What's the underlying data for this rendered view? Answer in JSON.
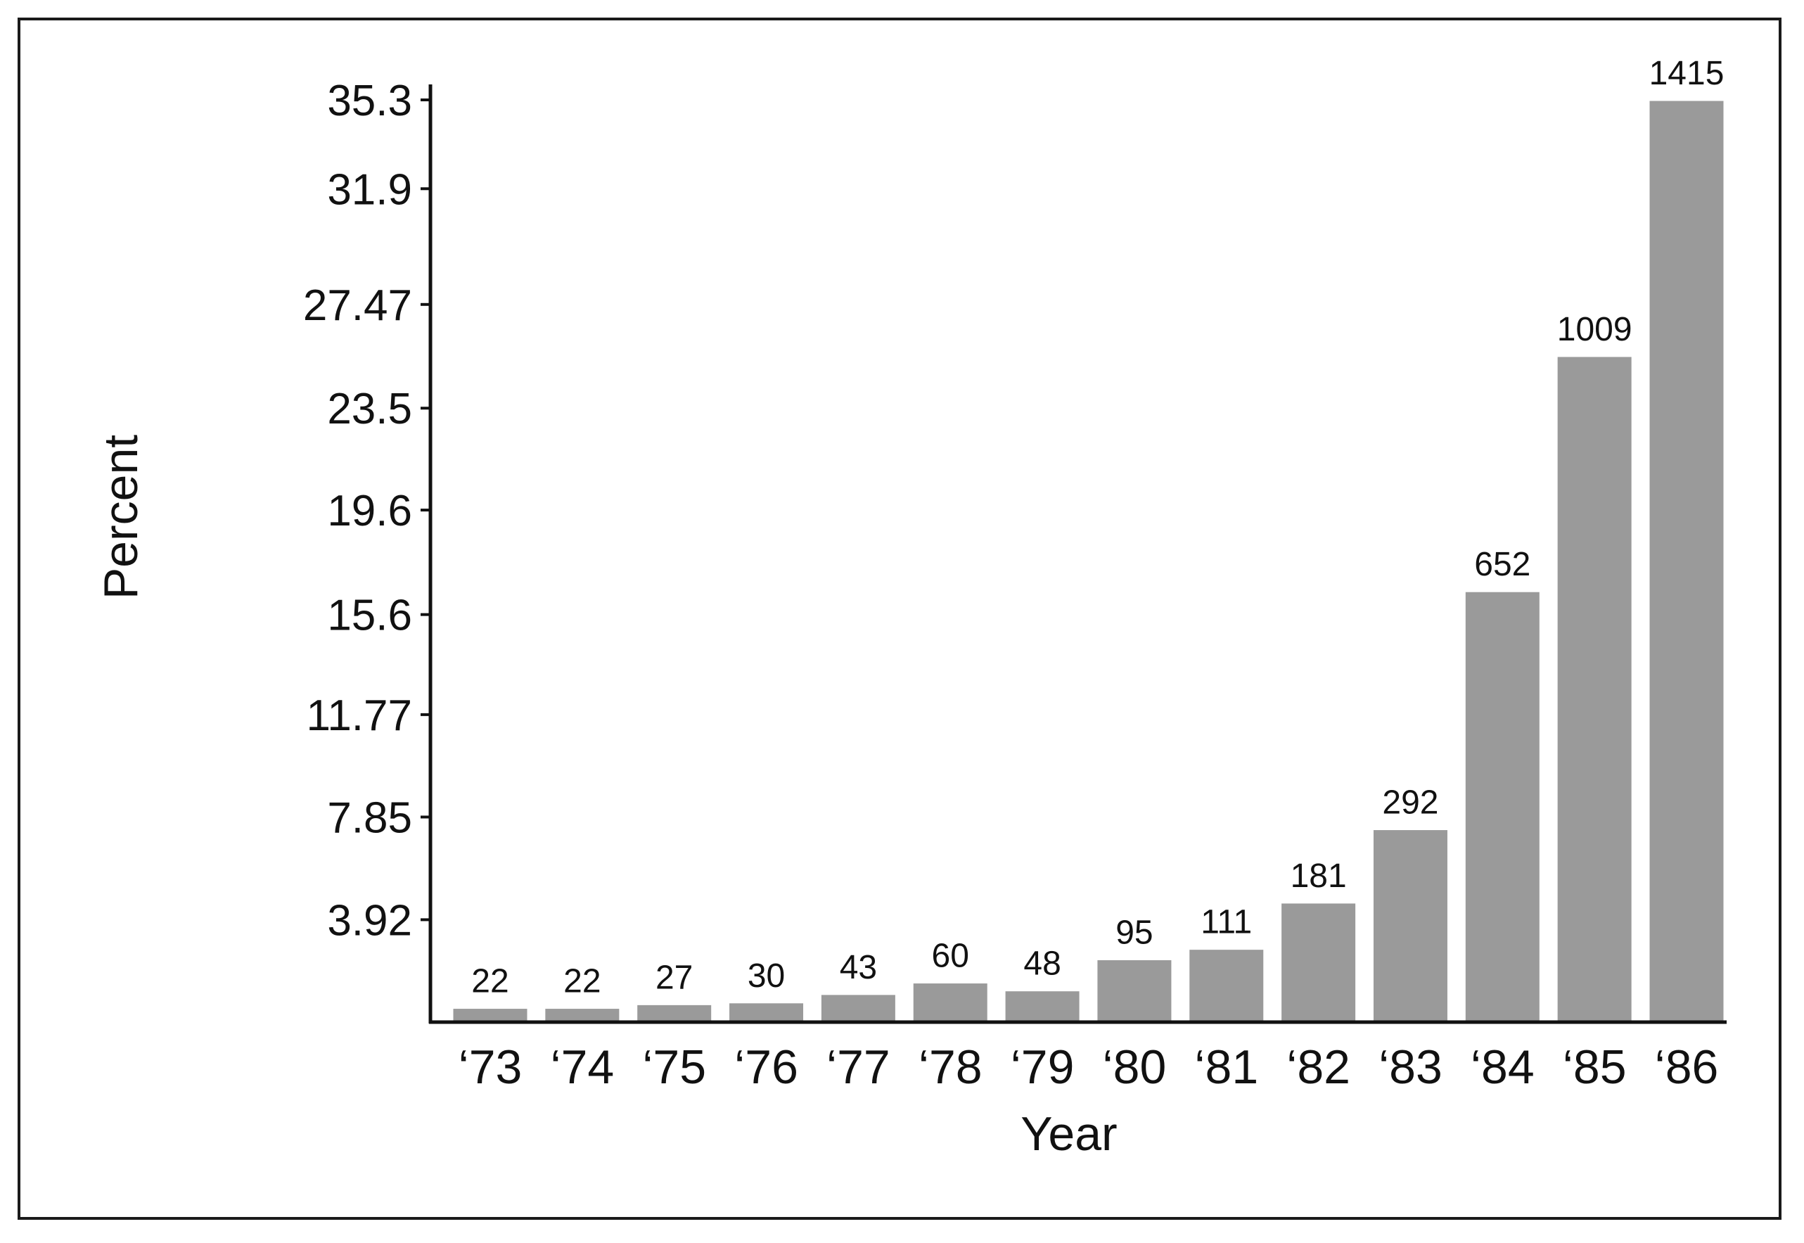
{
  "chart_data": {
    "type": "bar",
    "title": "",
    "xlabel": "Year",
    "ylabel": "Percent",
    "categories": [
      "‘73",
      "‘74",
      "‘75",
      "‘76",
      "‘77",
      "‘78",
      "‘79",
      "‘80",
      "‘81",
      "‘82",
      "‘83",
      "‘84",
      "‘85",
      "‘86"
    ],
    "values": [
      0.55,
      0.55,
      0.69,
      0.76,
      1.08,
      1.52,
      1.22,
      2.41,
      2.81,
      4.58,
      7.39,
      16.5,
      25.5,
      35.3
    ],
    "data_labels": [
      "22",
      "22",
      "27",
      "30",
      "43",
      "60",
      "48",
      "95",
      "111",
      "181",
      "292",
      "652",
      "1009",
      "1415"
    ],
    "yticks": [
      3.92,
      7.85,
      11.77,
      15.6,
      19.6,
      23.5,
      27.47,
      31.9,
      35.3
    ],
    "ytick_labels": [
      "3.92",
      "7.85",
      "11.77",
      "15.6",
      "19.6",
      "23.5",
      "27.47",
      "31.9",
      "35.3"
    ],
    "ylim": [
      0,
      35.3
    ],
    "grid": false,
    "legend": "none",
    "bar_color": "#9a9a9a"
  }
}
